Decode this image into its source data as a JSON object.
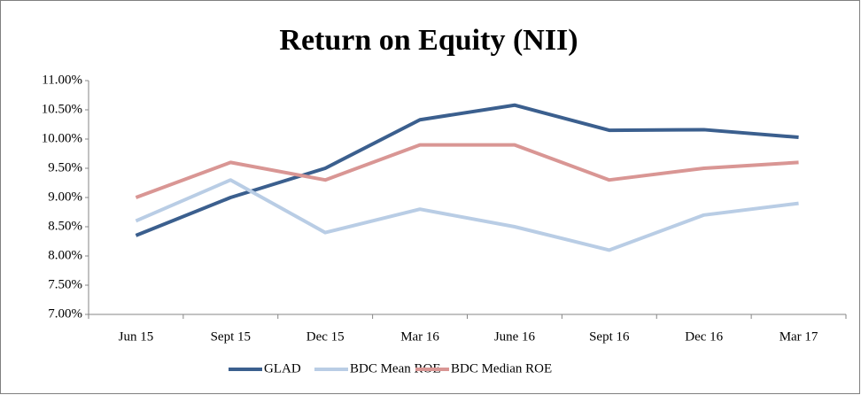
{
  "chart_data": {
    "type": "line",
    "title": "Return on Equity (NII)",
    "categories": [
      "Jun 15",
      "Sept 15",
      "Dec 15",
      "Mar 16",
      "June 16",
      "Sept 16",
      "Dec 16",
      "Mar 17"
    ],
    "series": [
      {
        "name": "GLAD",
        "color": "#3b5f8e",
        "values": [
          8.35,
          9.0,
          9.5,
          10.33,
          10.58,
          10.15,
          10.16,
          10.03
        ]
      },
      {
        "name": "BDC Mean ROE",
        "color": "#b9cde5",
        "values": [
          8.6,
          9.3,
          8.4,
          8.8,
          8.5,
          8.1,
          8.7,
          8.9
        ]
      },
      {
        "name": "BDC Median ROE",
        "color": "#d99694",
        "values": [
          9.0,
          9.6,
          9.3,
          9.9,
          9.9,
          9.3,
          9.5,
          9.6
        ]
      }
    ],
    "ylim": [
      7,
      11
    ],
    "yticks": [
      {
        "value": 7,
        "label": "7.00%"
      },
      {
        "value": 7.5,
        "label": "7.50%"
      },
      {
        "value": 8,
        "label": "8.00%"
      },
      {
        "value": 8.5,
        "label": "8.50%"
      },
      {
        "value": 9,
        "label": "9.00%"
      },
      {
        "value": 9.5,
        "label": "9.50%"
      },
      {
        "value": 10,
        "label": "10.00%"
      },
      {
        "value": 10.5,
        "label": "10.50%"
      },
      {
        "value": 11,
        "label": "11.00%"
      }
    ],
    "grid": false,
    "legend": "bottom"
  }
}
